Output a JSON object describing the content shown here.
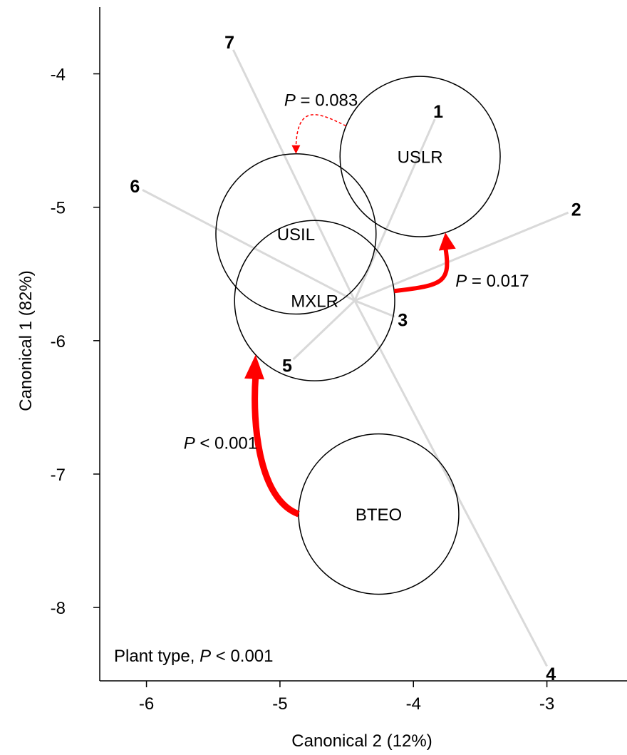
{
  "chart_data": {
    "type": "scatter",
    "title": "",
    "xlabel": "Canonical 2 (12%)",
    "ylabel": "Canonical 1 (82%)",
    "xlim": [
      -6.35,
      -2.4
    ],
    "ylim": [
      -8.55,
      -3.5
    ],
    "x_ticks": [
      {
        "value": -6,
        "label": "-6"
      },
      {
        "value": -5,
        "label": "-5"
      },
      {
        "value": -4,
        "label": "-4"
      },
      {
        "value": -3,
        "label": "-3"
      }
    ],
    "y_ticks": [
      {
        "value": -4,
        "label": "-4"
      },
      {
        "value": -5,
        "label": "-5"
      },
      {
        "value": -6,
        "label": "-6"
      },
      {
        "value": -7,
        "label": "-7"
      },
      {
        "value": -8,
        "label": "-8"
      }
    ],
    "grid": false,
    "vector_origin": {
      "x": -4.44,
      "y": -5.7
    },
    "vectors": [
      {
        "label": "1",
        "x": -3.84,
        "y": -4.34
      },
      {
        "label": "2",
        "x": -2.84,
        "y": -5.04
      },
      {
        "label": "3",
        "x": -4.14,
        "y": -5.82
      },
      {
        "label": "4",
        "x": -3.0,
        "y": -8.44
      },
      {
        "label": "5",
        "x": -4.9,
        "y": -6.14
      },
      {
        "label": "6",
        "x": -6.03,
        "y": -4.87
      },
      {
        "label": "7",
        "x": -5.35,
        "y": -3.82
      }
    ],
    "groups": [
      {
        "label": "USLR",
        "x": -3.95,
        "y": -4.62,
        "r": 0.6
      },
      {
        "label": "USIL",
        "x": -4.88,
        "y": -5.2,
        "r": 0.6
      },
      {
        "label": "MXLR",
        "x": -4.74,
        "y": -5.7,
        "r": 0.6
      },
      {
        "label": "BTEO",
        "x": -4.26,
        "y": -7.3,
        "r": 0.6
      }
    ],
    "arrows": [
      {
        "from": "MXLR",
        "to": "USLR",
        "label_prefix": "P",
        "label_value": " = 0.017",
        "style": "solid-thick"
      },
      {
        "from": "BTEO",
        "to": "MXLR",
        "label_prefix": "P",
        "label_value": " < 0.001",
        "style": "solid-thick"
      },
      {
        "from": "USLR",
        "to": "USIL",
        "label_prefix": "P",
        "label_value": " = 0.083",
        "style": "dashed-thin"
      }
    ],
    "annotation": {
      "prefix": "Plant type, ",
      "italic": "P",
      "suffix": " < 0.001"
    },
    "colors": {
      "vector": "#d9d9d9",
      "arrow": "#ff0000",
      "circle": "#000000"
    }
  }
}
